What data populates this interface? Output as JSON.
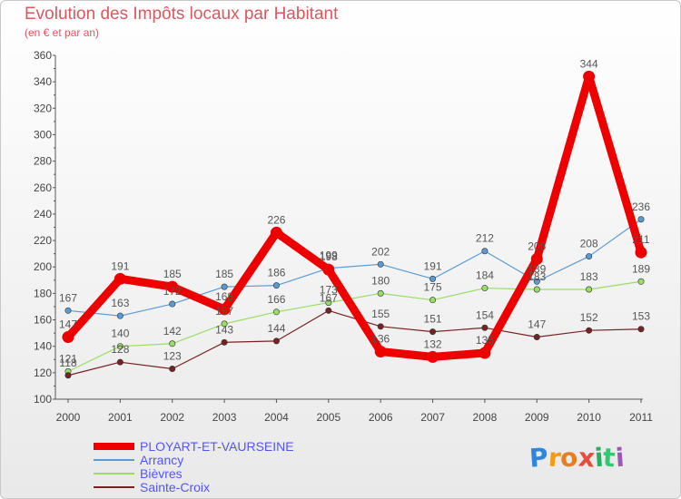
{
  "title": "Evolution des Impôts locaux par Habitant",
  "subtitle": "(en € et par an)",
  "logo": "Proxiti",
  "chart_data": {
    "type": "line",
    "title": "Evolution des Impôts locaux par Habitant",
    "ylabel": "(en € et par an)",
    "xlabel": "",
    "x": [
      "2000",
      "2001",
      "2002",
      "2003",
      "2004",
      "2005",
      "2006",
      "2007",
      "2008",
      "2009",
      "2010",
      "2011"
    ],
    "ylim": [
      100,
      360
    ],
    "yticks": [
      "100",
      "120",
      "140",
      "160",
      "180",
      "200",
      "220",
      "240",
      "260",
      "280",
      "300",
      "320",
      "340",
      "360"
    ],
    "grid": false,
    "legend_position": "bottom-left",
    "series": [
      {
        "name": "PLOYART-ET-VAURSEINE",
        "color": "#ee0000",
        "values": [
          147,
          191,
          185,
          168,
          226,
          198,
          136,
          132,
          135,
          206,
          344,
          211
        ],
        "labels": [
          "147",
          "191",
          "185",
          "168",
          "226",
          "198",
          "136",
          "132",
          "135",
          "206",
          "344",
          "211"
        ]
      },
      {
        "name": "Arrancy",
        "color": "#5b9bd5",
        "values": [
          167,
          163,
          172,
          185,
          186,
          199,
          202,
          191,
          212,
          189,
          208,
          236
        ],
        "labels": [
          "167",
          "163",
          "172",
          "185",
          "186",
          "199",
          "202",
          "191",
          "212",
          "189",
          "208",
          "236"
        ]
      },
      {
        "name": "Bièvres",
        "color": "#99dd66",
        "values": [
          121,
          140,
          142,
          157,
          166,
          173,
          180,
          175,
          184,
          183,
          183,
          189
        ],
        "labels": [
          "121",
          "140",
          "142",
          "157",
          "166",
          "173",
          "180",
          "175",
          "184",
          "183",
          "183",
          "189"
        ]
      },
      {
        "name": "Sainte-Croix",
        "color": "#772222",
        "values": [
          118,
          128,
          123,
          143,
          144,
          167,
          155,
          151,
          154,
          147,
          152,
          153
        ],
        "labels": [
          "118",
          "128",
          "123",
          "143",
          "144",
          "167",
          "155",
          "151",
          "154",
          "147",
          "152",
          "153"
        ]
      }
    ]
  }
}
